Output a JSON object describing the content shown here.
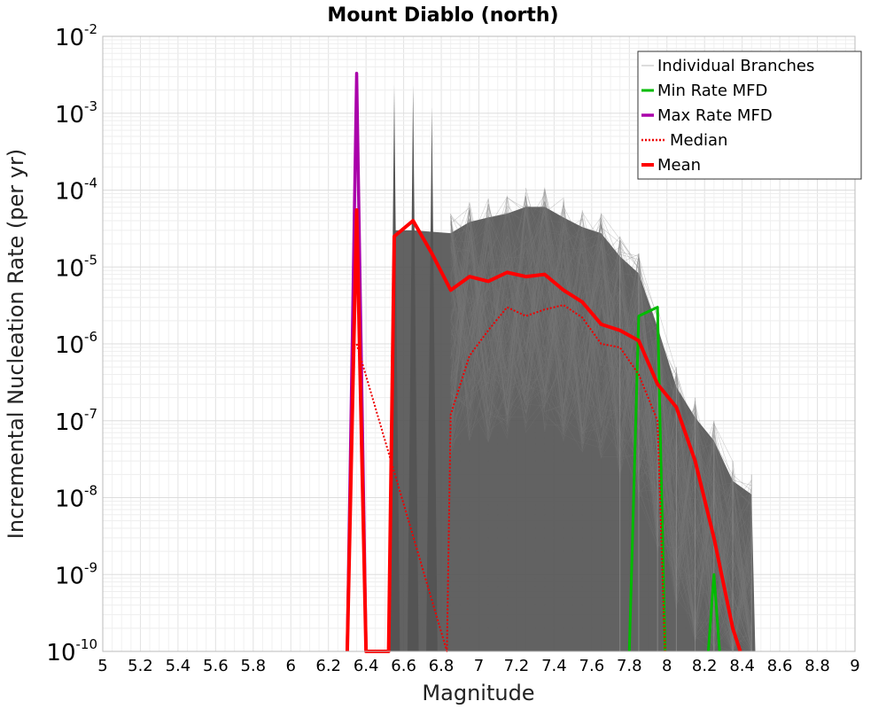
{
  "chart_data": {
    "type": "line",
    "title": "Mount Diablo (north)",
    "xlabel": "Magnitude",
    "ylabel": "Incremental Nucleation Rate (per yr)",
    "x_scale": "linear",
    "y_scale": "log",
    "xlim": [
      5,
      9
    ],
    "ylim": [
      1e-10,
      0.01
    ],
    "grid": true,
    "legend_position": "top-right",
    "x_ticks": [
      "5",
      "5.2",
      "5.4",
      "5.6",
      "5.8",
      "6",
      "6.2",
      "6.4",
      "6.6",
      "6.8",
      "7",
      "7.2",
      "7.4",
      "7.6",
      "7.8",
      "8",
      "8.2",
      "8.4",
      "8.6",
      "8.8",
      "9"
    ],
    "y_ticks": [
      {
        "base": "10",
        "exp": "-2"
      },
      {
        "base": "10",
        "exp": "-3"
      },
      {
        "base": "10",
        "exp": "-4"
      },
      {
        "base": "10",
        "exp": "-5"
      },
      {
        "base": "10",
        "exp": "-6"
      },
      {
        "base": "10",
        "exp": "-7"
      },
      {
        "base": "10",
        "exp": "-8"
      },
      {
        "base": "10",
        "exp": "-9"
      },
      {
        "base": "10",
        "exp": "-10"
      }
    ],
    "series": [
      {
        "name": "Individual Branches",
        "color": "#555555",
        "style": "thin",
        "branch_envelope": {
          "peaks": [
            [
              6.55,
              0.0023
            ],
            [
              6.65,
              0.0023
            ],
            [
              6.75,
              0.0012
            ]
          ],
          "upper": [
            [
              6.85,
              5e-05
            ],
            [
              6.95,
              7e-05
            ],
            [
              7.05,
              8e-05
            ],
            [
              7.15,
              9e-05
            ],
            [
              7.25,
              0.00011
            ],
            [
              7.35,
              0.00011
            ],
            [
              7.45,
              8e-05
            ],
            [
              7.55,
              6e-05
            ],
            [
              7.65,
              5e-05
            ],
            [
              7.75,
              2.5e-05
            ],
            [
              7.85,
              1.5e-05
            ],
            [
              7.95,
              3e-06
            ],
            [
              8.05,
              5e-07
            ],
            [
              8.15,
              2e-07
            ],
            [
              8.25,
              1e-07
            ],
            [
              8.35,
              3e-08
            ],
            [
              8.45,
              2e-08
            ]
          ]
        }
      },
      {
        "name": "Min Rate MFD",
        "color": "#00bb00",
        "style": "solid",
        "points": [
          [
            7.8,
            1e-10
          ],
          [
            7.85,
            2.3e-06
          ],
          [
            7.95,
            3e-06
          ],
          [
            7.99,
            1e-10
          ]
        ],
        "extra_points": [
          [
            8.22,
            1e-10
          ],
          [
            8.25,
            1e-09
          ],
          [
            8.28,
            1e-10
          ]
        ]
      },
      {
        "name": "Max Rate MFD",
        "color": "#aa00aa",
        "style": "solid",
        "points": [
          [
            6.3,
            1e-10
          ],
          [
            6.35,
            0.0033
          ],
          [
            6.4,
            1e-10
          ]
        ]
      },
      {
        "name": "Median",
        "color": "#ee0000",
        "style": "dotted",
        "points": [
          [
            6.35,
            1e-06
          ],
          [
            6.83,
            1e-10
          ],
          [
            6.85,
            1.2e-07
          ],
          [
            6.95,
            7e-07
          ],
          [
            7.05,
            1.5e-06
          ],
          [
            7.15,
            3e-06
          ],
          [
            7.25,
            2.3e-06
          ],
          [
            7.35,
            2.8e-06
          ],
          [
            7.45,
            3.2e-06
          ],
          [
            7.55,
            2.2e-06
          ],
          [
            7.65,
            1e-06
          ],
          [
            7.75,
            9e-07
          ],
          [
            7.85,
            4e-07
          ],
          [
            7.95,
            1e-07
          ],
          [
            7.99,
            1e-10
          ]
        ]
      },
      {
        "name": "Mean",
        "color": "#ff0000",
        "style": "thick",
        "points": [
          [
            6.3,
            1e-10
          ],
          [
            6.35,
            5.5e-05
          ],
          [
            6.4,
            1e-10
          ],
          [
            6.52,
            1e-10
          ],
          [
            6.55,
            2.5e-05
          ],
          [
            6.65,
            4e-05
          ],
          [
            6.75,
            1.5e-05
          ],
          [
            6.85,
            5e-06
          ],
          [
            6.95,
            7.5e-06
          ],
          [
            7.05,
            6.5e-06
          ],
          [
            7.15,
            8.5e-06
          ],
          [
            7.25,
            7.5e-06
          ],
          [
            7.35,
            8e-06
          ],
          [
            7.45,
            5e-06
          ],
          [
            7.55,
            3.5e-06
          ],
          [
            7.65,
            1.8e-06
          ],
          [
            7.75,
            1.5e-06
          ],
          [
            7.85,
            1.1e-06
          ],
          [
            7.95,
            3e-07
          ],
          [
            8.05,
            1.5e-07
          ],
          [
            8.15,
            3e-08
          ],
          [
            8.25,
            3e-09
          ],
          [
            8.35,
            2e-10
          ],
          [
            8.39,
            1e-10
          ]
        ]
      }
    ]
  }
}
